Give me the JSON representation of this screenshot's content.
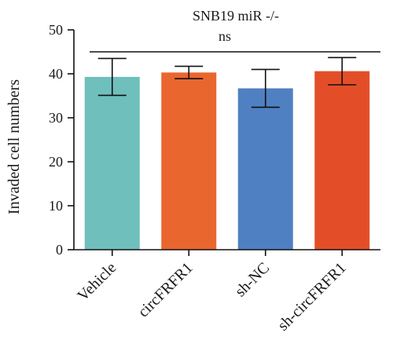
{
  "chart_data": {
    "type": "bar",
    "title": "SNB19 miR -/-",
    "annotation": "ns",
    "xlabel": "",
    "ylabel": "Invaded cell numbers",
    "ylim": [
      0,
      50
    ],
    "yticks": [
      0,
      10,
      20,
      30,
      40,
      50
    ],
    "categories": [
      "Vehicle",
      "circFRFR1",
      "sh-NC",
      "sh-circFRFR1"
    ],
    "values": [
      39.3,
      40.3,
      36.7,
      40.6
    ],
    "errors": [
      4.2,
      1.4,
      4.3,
      3.1
    ],
    "colors": [
      "#6fbfbd",
      "#e9662f",
      "#4f80c2",
      "#e34e29"
    ],
    "grid": false,
    "legend": "none"
  }
}
